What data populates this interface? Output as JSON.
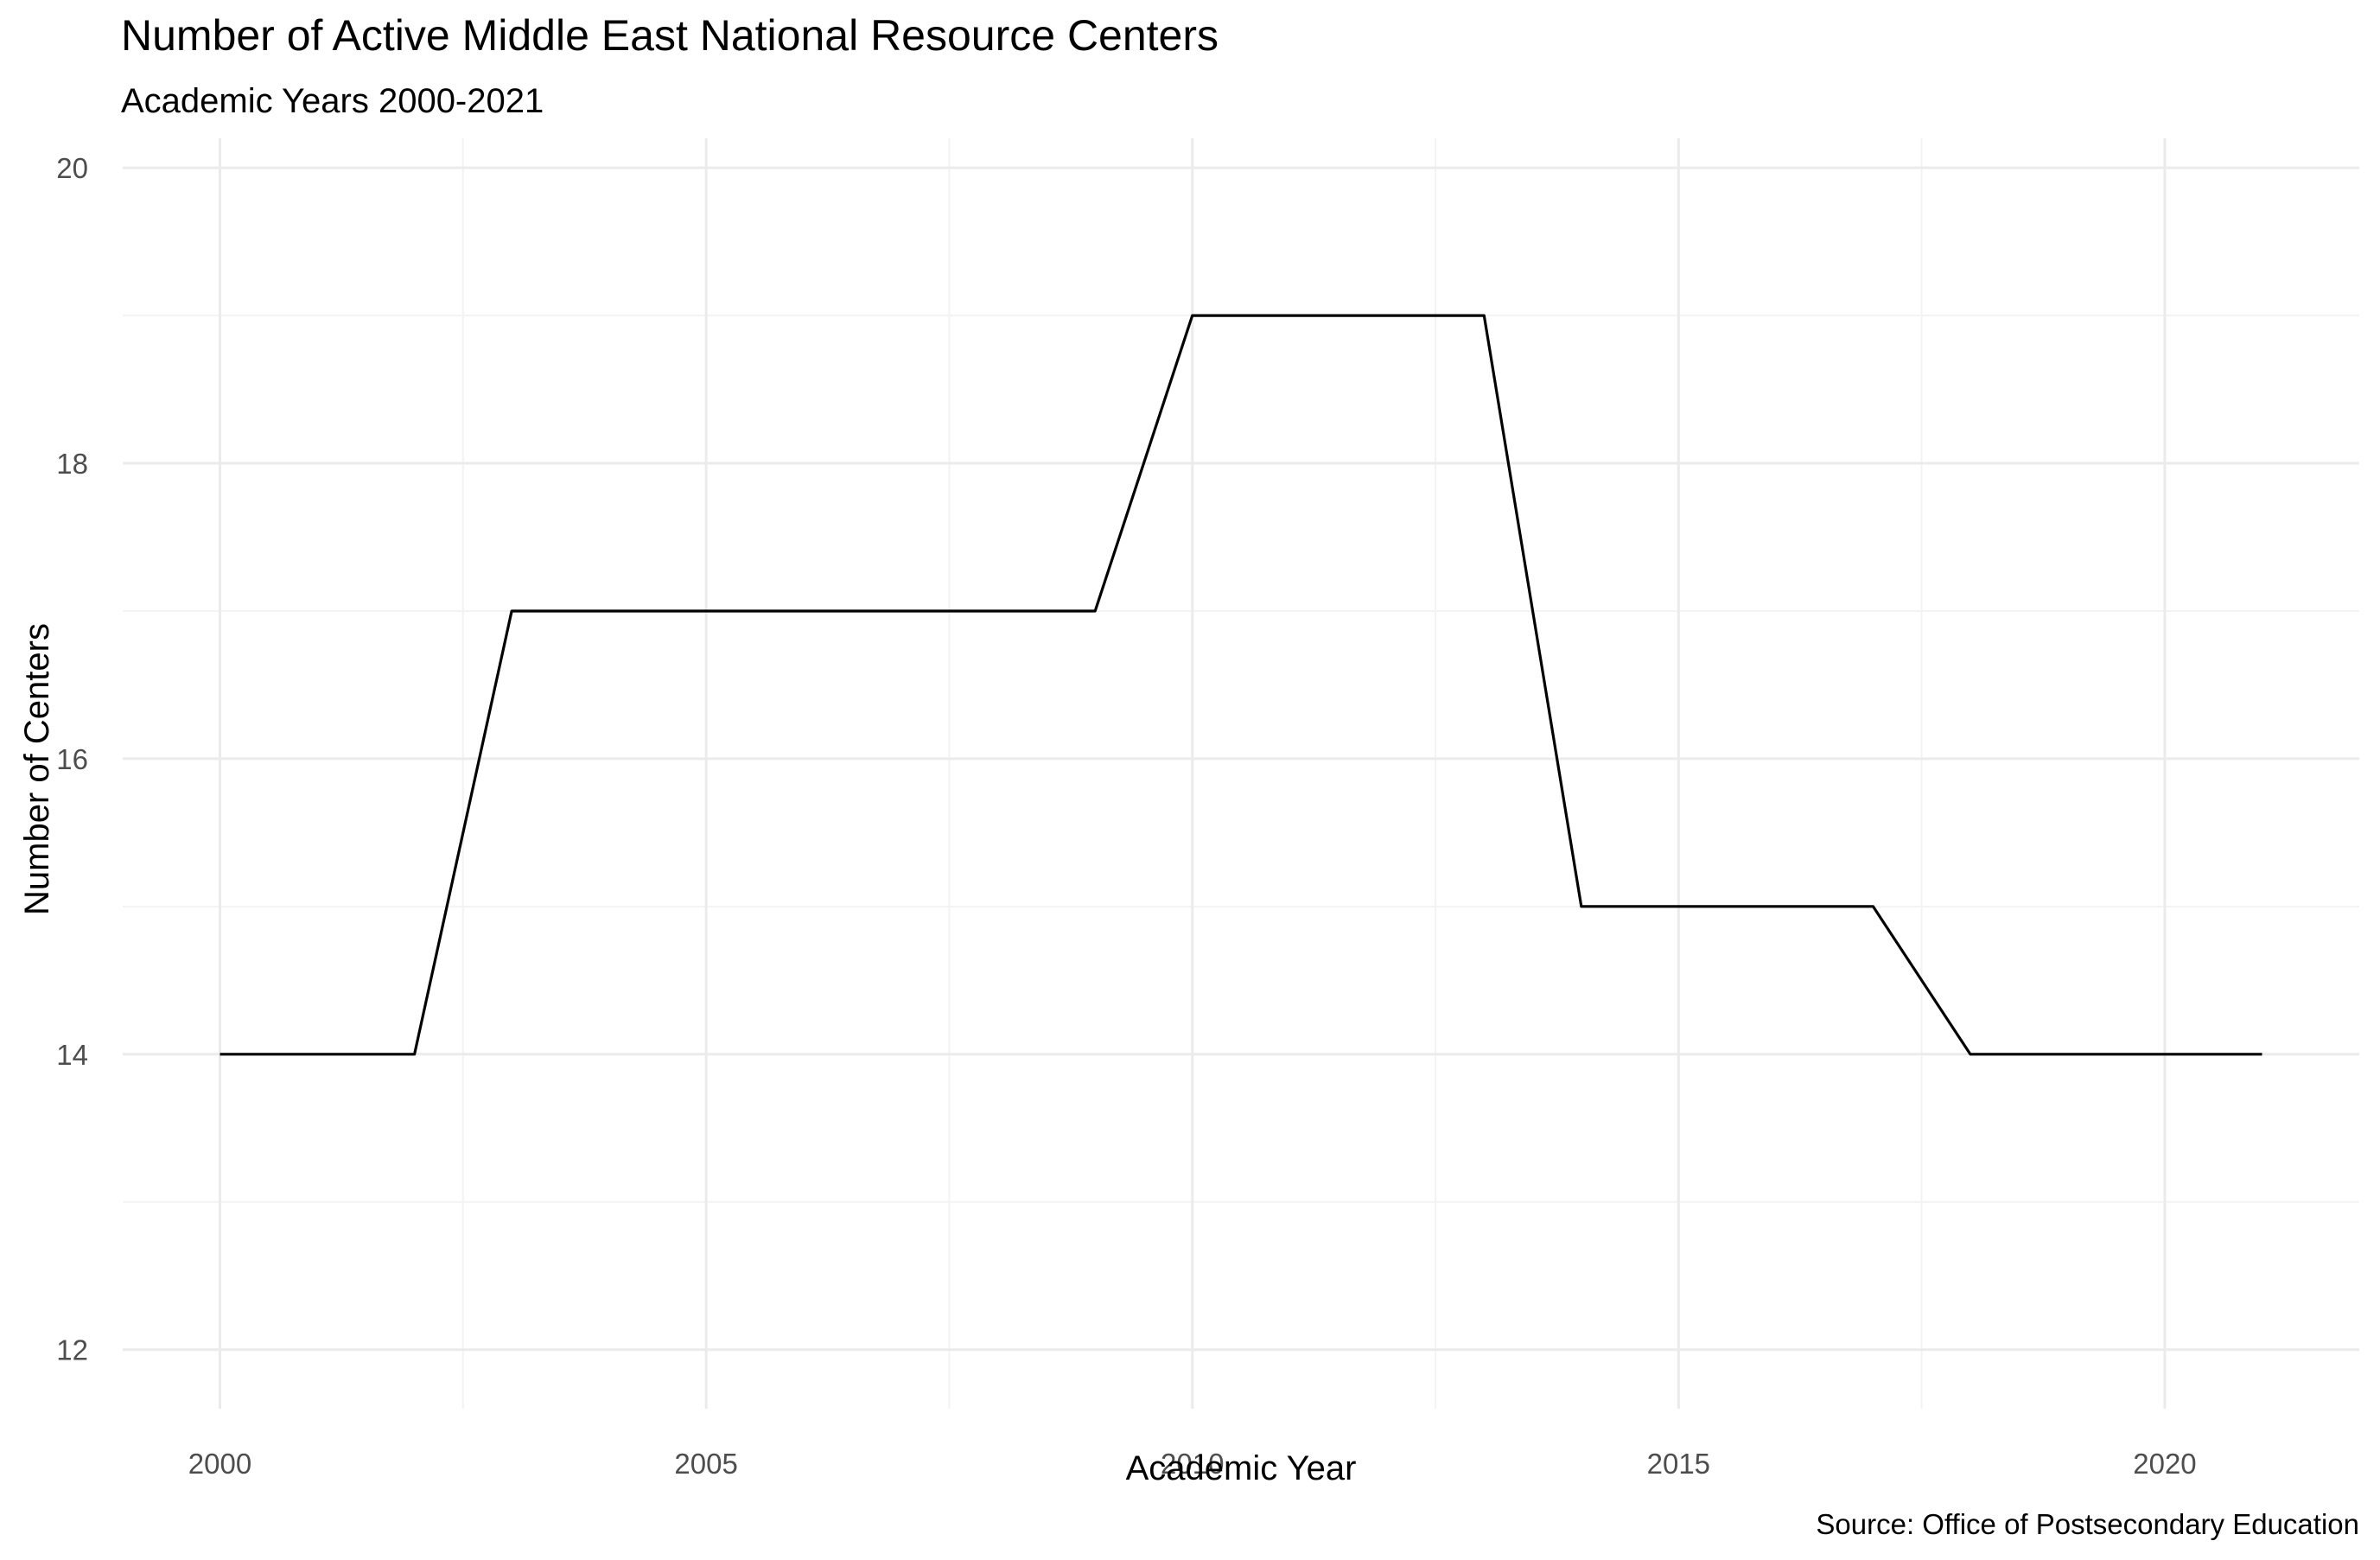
{
  "chart_data": {
    "type": "line",
    "title": "Number of Active Middle East National Resource Centers",
    "subtitle": "Academic Years 2000-2021",
    "xlabel": "Academic Year",
    "ylabel": "Number of Centers",
    "caption": "Source: Office of Postsecondary Education",
    "xlim": [
      1999,
      2022
    ],
    "ylim": [
      11.6,
      20.2
    ],
    "x_ticks": [
      2000,
      2005,
      2010,
      2015,
      2020
    ],
    "x_minor": [
      2002.5,
      2007.5,
      2012.5,
      2017.5
    ],
    "y_ticks": [
      12,
      14,
      16,
      18,
      20
    ],
    "y_minor": [
      13,
      15,
      17,
      19
    ],
    "grid": true,
    "legend": "none",
    "series": [
      {
        "color": "#000000",
        "x": [
          2000,
          2001,
          2002,
          2003,
          2004,
          2005,
          2006,
          2007,
          2008,
          2009,
          2010,
          2011,
          2012,
          2013,
          2014,
          2015,
          2016,
          2017,
          2018,
          2019,
          2020,
          2021
        ],
        "y": [
          14,
          14,
          14,
          17,
          17,
          17,
          17,
          17,
          17,
          17,
          19,
          19,
          19,
          19,
          15,
          15,
          15,
          15,
          14,
          14,
          14,
          14
        ]
      }
    ],
    "colors": {
      "line": "#000000",
      "grid_major": "#EBEBEB",
      "grid_minor": "#F3F3F3",
      "tick_text": "#4D4D4D",
      "text": "#000000"
    }
  }
}
